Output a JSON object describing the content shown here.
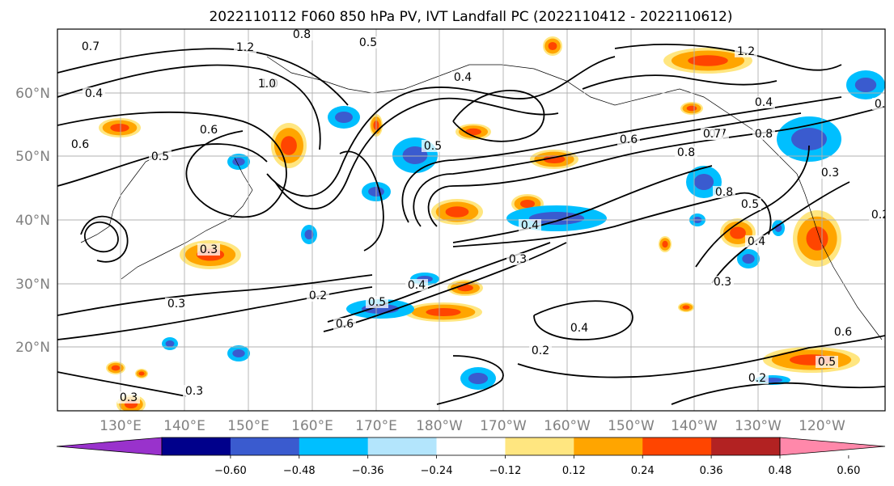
{
  "chart_data": {
    "type": "heatmap",
    "title": "2022110112 F060 850 hPa PV, IVT Landfall PC (2022110412 - 2022110612)",
    "x_ticks": [
      "130°E",
      "140°E",
      "150°E",
      "160°E",
      "170°E",
      "180°W",
      "170°W",
      "160°W",
      "150°W",
      "140°W",
      "130°W",
      "120°W"
    ],
    "y_ticks": [
      "20°N",
      "30°N",
      "40°N",
      "50°N",
      "60°N"
    ],
    "grid": true,
    "colorbar": {
      "orientation": "horizontal",
      "extend": "both",
      "tick_labels": [
        "−0.60",
        "−0.48",
        "−0.36",
        "−0.24",
        "−0.12",
        "0.12",
        "0.24",
        "0.36",
        "0.48",
        "0.60"
      ],
      "colors": [
        "#9932cc",
        "#00008b",
        "#3a5bcf",
        "#00bfff",
        "#b3e5fc",
        "#ffffff",
        "#ffe680",
        "#ffa500",
        "#ff4500",
        "#b22222",
        "#ff88aa"
      ]
    },
    "contour_labels": [
      "0.7",
      "1.2",
      "0.8",
      "0.5",
      "0.6",
      "1.0",
      "0.4",
      "0.6",
      "0.8",
      "0.5",
      "0.5",
      "0.3",
      "0.2",
      "0.3",
      "0.5",
      "0.4",
      "0.6",
      "0.2",
      "0.4",
      "0.3",
      "0.2",
      "0.5",
      "0.6",
      "0.8",
      "0.7",
      "0.8",
      "0.8",
      "0.3",
      "1.2",
      "0.3",
      "0.5",
      "0.4",
      "0.3",
      "0.4",
      "0.2",
      "0.3",
      "0.2",
      "0.4",
      "0.6",
      "1.0",
      "0.8",
      "0.4",
      "0.7"
    ]
  }
}
